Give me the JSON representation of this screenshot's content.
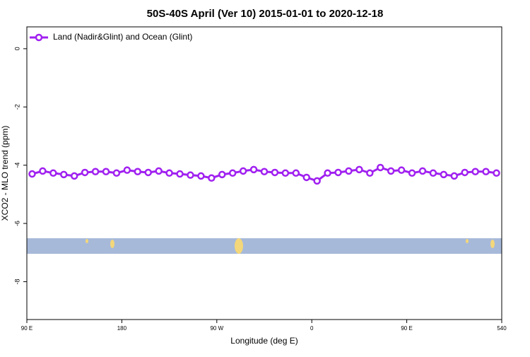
{
  "chart_data": {
    "type": "line",
    "title": "50S-40S April (Ver 10)   2015-01-01 to 2020-12-18",
    "x_label": "Longitude (deg E)",
    "y_label": "XCO2 - MLO trend (ppm)",
    "x": [
      95,
      105,
      115,
      125,
      135,
      145,
      155,
      165,
      175,
      185,
      195,
      205,
      215,
      225,
      235,
      245,
      255,
      265,
      275,
      285,
      295,
      305,
      315,
      325,
      335,
      345,
      355,
      365,
      375,
      385,
      395,
      405,
      415,
      425,
      435,
      445,
      455,
      465,
      475,
      485,
      495,
      505,
      515,
      525,
      535
    ],
    "series": [
      {
        "name": "Land (Nadir&Glint) and Ocean (Glint)",
        "color": "#a020f0",
        "values": [
          -4.3,
          -4.2,
          -4.27,
          -4.32,
          -4.37,
          -4.25,
          -4.22,
          -4.22,
          -4.27,
          -4.17,
          -4.22,
          -4.25,
          -4.2,
          -4.27,
          -4.3,
          -4.34,
          -4.37,
          -4.44,
          -4.32,
          -4.27,
          -4.2,
          -4.15,
          -4.22,
          -4.25,
          -4.27,
          -4.27,
          -4.42,
          -4.54,
          -4.27,
          -4.25,
          -4.2,
          -4.15,
          -4.27,
          -4.08,
          -4.2,
          -4.17,
          -4.27,
          -4.2,
          -4.27,
          -4.32,
          -4.37,
          -4.25,
          -4.22,
          -4.22,
          -4.27
        ]
      }
    ],
    "xlim": [
      90,
      540
    ],
    "xticks": [
      {
        "value": 90,
        "label": "90 E"
      },
      180,
      {
        "value": 270,
        "label": "90 W"
      },
      {
        "value": 360,
        "label": "0"
      },
      {
        "value": 450,
        "label": "90 E"
      },
      540
    ],
    "ylim": [
      -9.3,
      0.75
    ],
    "yticks": [
      0,
      -2,
      -4,
      -6,
      -8
    ],
    "legend": "top-left"
  }
}
